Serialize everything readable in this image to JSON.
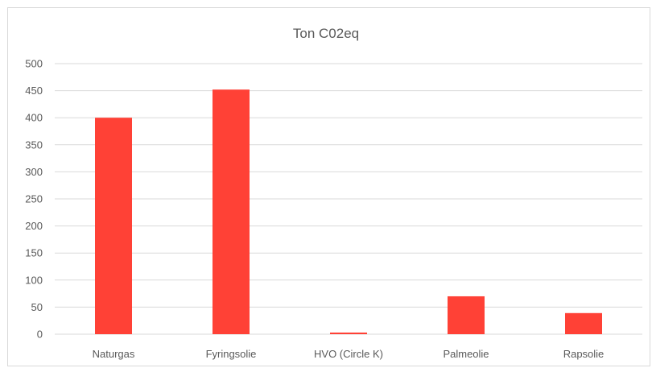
{
  "chart_data": {
    "type": "bar",
    "title": "Ton C02eq",
    "categories": [
      "Naturgas",
      "Fyringsolie",
      "HVO (Circle K)",
      "Palmeolie",
      "Rapsolie"
    ],
    "values": [
      400,
      452,
      3,
      70,
      39
    ],
    "ylim": [
      0,
      500
    ],
    "yticks": [
      0,
      50,
      100,
      150,
      200,
      250,
      300,
      350,
      400,
      450,
      500
    ],
    "xlabel": "",
    "ylabel": "",
    "grid": true,
    "legend": "none",
    "bar_color": "#ff4136",
    "grid_color": "#d9d9d9",
    "text_color": "#595959"
  }
}
